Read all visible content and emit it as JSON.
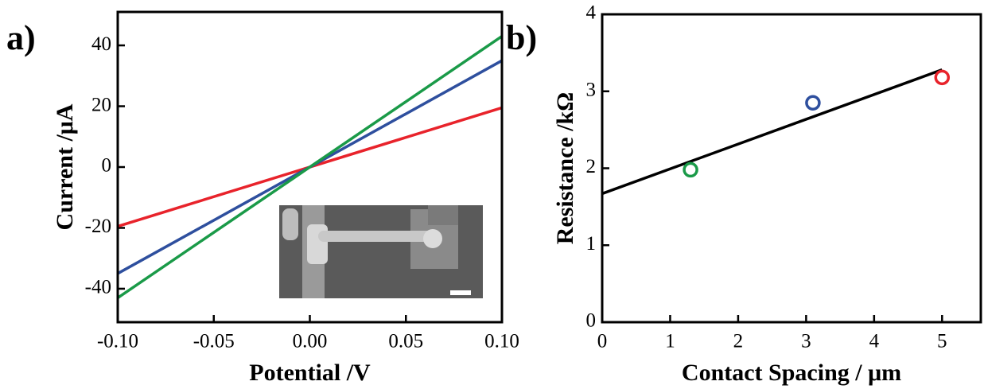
{
  "chart_data": [
    {
      "type": "line",
      "label": "a)",
      "ylabel": "Current /μA",
      "xlabel": "Potential /V",
      "x": [
        -0.1,
        0.1
      ],
      "series": [
        {
          "color": "#e8232b",
          "values": [
            -19.5,
            19.5
          ]
        },
        {
          "color": "#2e4f9e",
          "values": [
            -35,
            35
          ]
        },
        {
          "color": "#1a9a48",
          "values": [
            -43,
            43
          ]
        }
      ],
      "xlim": [
        -0.1,
        0.1
      ],
      "xticks": [
        {
          "value": -0.1,
          "label": "-0.10"
        },
        {
          "value": -0.05,
          "label": "-0.05"
        },
        {
          "value": 0,
          "label": "0.00"
        },
        {
          "value": 0.05,
          "label": "0.05"
        },
        {
          "value": 0.1,
          "label": "0.10"
        }
      ],
      "ylim": [
        -51,
        51
      ],
      "yticks": [
        -40,
        -20,
        0,
        20,
        40
      ]
    },
    {
      "type": "scatter",
      "label": "b)",
      "ylabel": "Resistance /kΩ",
      "xlabel": "Contact Spacing / μm",
      "series": [
        {
          "color": "#1a9a48",
          "x": [
            1.3
          ],
          "values": [
            1.98
          ]
        },
        {
          "color": "#2e4f9e",
          "x": [
            3.1
          ],
          "values": [
            2.85
          ]
        },
        {
          "color": "#e8232b",
          "x": [
            5.0
          ],
          "values": [
            3.18
          ]
        }
      ],
      "fit": {
        "color": "#000000",
        "x": [
          0,
          5
        ],
        "values": [
          1.67,
          3.28
        ]
      },
      "xlim": [
        0,
        5.57
      ],
      "xticks": [
        0,
        1,
        2,
        3,
        4,
        5
      ],
      "ylim": [
        0,
        4
      ],
      "yticks": [
        0,
        1,
        2,
        3,
        4
      ]
    }
  ]
}
